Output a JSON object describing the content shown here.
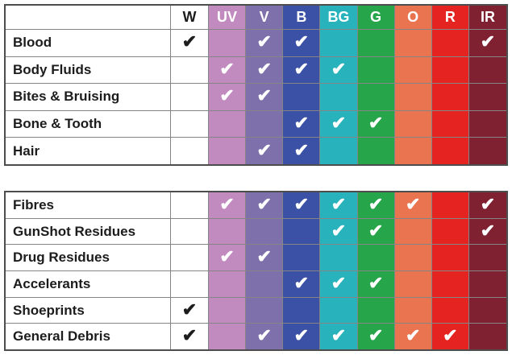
{
  "chart_data": {
    "type": "table",
    "description": "Evidence types vs light wavelength checkmark matrix",
    "check_glyph": "✔",
    "grid_color": "#858585",
    "outer_border_color": "#4d4d4d",
    "columns": [
      {
        "key": "W",
        "label": "W",
        "bg": "#ffffff",
        "label_color": "#1c1c1c",
        "check_color": "#1c1c1c"
      },
      {
        "key": "UV",
        "label": "UV",
        "bg": "#c28bbf",
        "label_color": "#ffffff",
        "check_color": "#ffffff"
      },
      {
        "key": "V",
        "label": "V",
        "bg": "#7d70ab",
        "label_color": "#ffffff",
        "check_color": "#ffffff"
      },
      {
        "key": "B",
        "label": "B",
        "bg": "#3b51a5",
        "label_color": "#ffffff",
        "check_color": "#ffffff"
      },
      {
        "key": "BG",
        "label": "BG",
        "bg": "#28b3bc",
        "label_color": "#ffffff",
        "check_color": "#ffffff"
      },
      {
        "key": "G",
        "label": "G",
        "bg": "#26a54b",
        "label_color": "#ffffff",
        "check_color": "#ffffff"
      },
      {
        "key": "O",
        "label": "O",
        "bg": "#ea7450",
        "label_color": "#ffffff",
        "check_color": "#ffffff"
      },
      {
        "key": "R",
        "label": "R",
        "bg": "#e52422",
        "label_color": "#ffffff",
        "check_color": "#ffffff"
      },
      {
        "key": "IR",
        "label": "IR",
        "bg": "#7f2130",
        "label_color": "#ffffff",
        "check_color": "#ffffff"
      }
    ],
    "tables": [
      {
        "has_header": true,
        "rows": [
          {
            "label": "Blood",
            "checks": [
              1,
              0,
              1,
              1,
              0,
              0,
              0,
              0,
              1
            ]
          },
          {
            "label": "Body Fluids",
            "checks": [
              0,
              1,
              1,
              1,
              1,
              0,
              0,
              0,
              0
            ]
          },
          {
            "label": "Bites & Bruising",
            "checks": [
              0,
              1,
              1,
              0,
              0,
              0,
              0,
              0,
              0
            ]
          },
          {
            "label": "Bone & Tooth",
            "checks": [
              0,
              0,
              0,
              1,
              1,
              1,
              0,
              0,
              0
            ]
          },
          {
            "label": "Hair",
            "checks": [
              0,
              0,
              1,
              1,
              0,
              0,
              0,
              0,
              0
            ]
          }
        ]
      },
      {
        "has_header": false,
        "rows": [
          {
            "label": "Fibres",
            "checks": [
              0,
              1,
              1,
              1,
              1,
              1,
              1,
              0,
              1
            ]
          },
          {
            "label": "GunShot Residues",
            "checks": [
              0,
              0,
              0,
              0,
              1,
              1,
              0,
              0,
              1
            ]
          },
          {
            "label": "Drug Residues",
            "checks": [
              0,
              1,
              1,
              0,
              0,
              0,
              0,
              0,
              0
            ]
          },
          {
            "label": "Accelerants",
            "checks": [
              0,
              0,
              0,
              1,
              1,
              1,
              0,
              0,
              0
            ]
          },
          {
            "label": "Shoeprints",
            "checks": [
              1,
              0,
              0,
              0,
              0,
              0,
              0,
              0,
              0
            ]
          },
          {
            "label": "General Debris",
            "checks": [
              1,
              0,
              1,
              1,
              1,
              1,
              1,
              1,
              0
            ]
          }
        ]
      }
    ]
  }
}
